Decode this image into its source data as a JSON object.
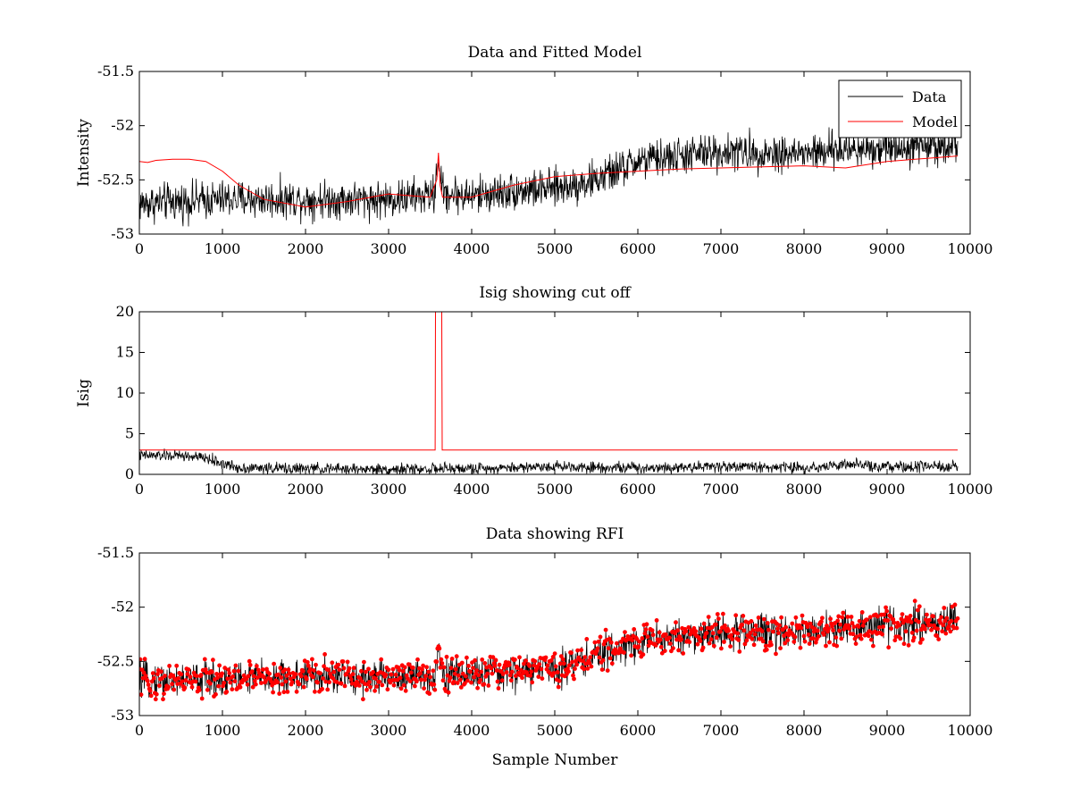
{
  "chart_data": [
    {
      "type": "line",
      "title": "Data and Fitted Model",
      "xlabel": "",
      "ylabel": "Intensity",
      "xlim": [
        0,
        10000
      ],
      "ylim": [
        -53,
        -51.5
      ],
      "xticks": [
        "0",
        "1000",
        "2000",
        "3000",
        "4000",
        "5000",
        "6000",
        "7000",
        "8000",
        "9000",
        "10000"
      ],
      "yticks": [
        "-51.5",
        "-52",
        "-52.5",
        "-53"
      ],
      "grid": false,
      "legend": {
        "placement": "top-right",
        "entries": [
          "Data",
          "Model"
        ]
      },
      "series": [
        {
          "name": "Data",
          "color": "#000000",
          "profile": {
            "x": [
              0,
              1000,
              2000,
              3000,
              3550,
              3600,
              3650,
              4000,
              4500,
              5000,
              5500,
              6000,
              6500,
              7000,
              7500,
              8000,
              8500,
              9000,
              9500,
              9850
            ],
            "y": [
              -52.72,
              -52.68,
              -52.68,
              -52.68,
              -52.64,
              -52.3,
              -52.62,
              -52.65,
              -52.6,
              -52.58,
              -52.5,
              -52.33,
              -52.28,
              -52.24,
              -52.25,
              -52.26,
              -52.22,
              -52.2,
              -52.18,
              -52.17
            ]
          },
          "noise_amplitude": 0.15
        },
        {
          "name": "Model",
          "color": "#ff0000",
          "x": [
            0,
            100,
            200,
            400,
            600,
            800,
            1000,
            1200,
            1500,
            2000,
            2500,
            3000,
            3500,
            3580,
            3600,
            3620,
            3650,
            4000,
            4500,
            5000,
            5500,
            6000,
            6500,
            7000,
            7500,
            8000,
            8500,
            9000,
            9500,
            9850
          ],
          "y": [
            -52.33,
            -52.34,
            -52.32,
            -52.31,
            -52.31,
            -52.33,
            -52.42,
            -52.55,
            -52.68,
            -52.75,
            -52.7,
            -52.63,
            -52.66,
            -52.5,
            -52.25,
            -52.55,
            -52.66,
            -52.66,
            -52.55,
            -52.47,
            -52.44,
            -52.42,
            -52.4,
            -52.39,
            -52.38,
            -52.37,
            -52.39,
            -52.33,
            -52.3,
            -52.28
          ]
        }
      ]
    },
    {
      "type": "line",
      "title": "Isig showing cut off",
      "xlabel": "",
      "ylabel": "Isig",
      "xlim": [
        0,
        10000
      ],
      "ylim": [
        0,
        20
      ],
      "xticks": [
        "0",
        "1000",
        "2000",
        "3000",
        "4000",
        "5000",
        "6000",
        "7000",
        "8000",
        "9000",
        "10000"
      ],
      "yticks": [
        "0",
        "5",
        "10",
        "15",
        "20"
      ],
      "grid": false,
      "series": [
        {
          "color": "#000000",
          "profile": {
            "x": [
              0,
              500,
              800,
              1000,
              1200,
              2000,
              3000,
              4000,
              5000,
              6000,
              7000,
              8000,
              8500,
              9000,
              9850
            ],
            "y": [
              2.3,
              2.3,
              2.0,
              1.3,
              0.8,
              0.7,
              0.6,
              0.7,
              1.0,
              0.8,
              1.0,
              0.8,
              1.2,
              0.9,
              0.9
            ]
          },
          "noise_amplitude": 0.6
        },
        {
          "color": "#ff0000",
          "x": [
            0,
            3560,
            3565,
            3600,
            3640,
            3645,
            9850
          ],
          "y": [
            3,
            3,
            20,
            20,
            20,
            3,
            3
          ]
        }
      ]
    },
    {
      "type": "scatter",
      "title": "Data showing RFI",
      "xlabel": "Sample Number",
      "ylabel": "",
      "xlim": [
        0,
        10000
      ],
      "ylim": [
        -53,
        -51.5
      ],
      "xticks": [
        "0",
        "1000",
        "2000",
        "3000",
        "4000",
        "5000",
        "6000",
        "7000",
        "8000",
        "9000",
        "10000"
      ],
      "yticks": [
        "-51.5",
        "-52",
        "-52.5",
        "-53"
      ],
      "grid": false,
      "series": [
        {
          "color": "#ff0000",
          "marker": "dot",
          "profile": {
            "x": [
              0,
              1000,
              2000,
              3000,
              3550,
              3600,
              3650,
              4000,
              4500,
              5000,
              5500,
              6000,
              6500,
              7000,
              7500,
              8000,
              8500,
              9000,
              9500,
              9850
            ],
            "y": [
              -52.68,
              -52.66,
              -52.64,
              -52.65,
              -52.64,
              -52.35,
              -52.62,
              -52.62,
              -52.6,
              -52.56,
              -52.45,
              -52.32,
              -52.27,
              -52.24,
              -52.22,
              -52.22,
              -52.2,
              -52.17,
              -52.14,
              -52.12
            ]
          },
          "noise_amplitude": 0.14
        }
      ]
    }
  ]
}
